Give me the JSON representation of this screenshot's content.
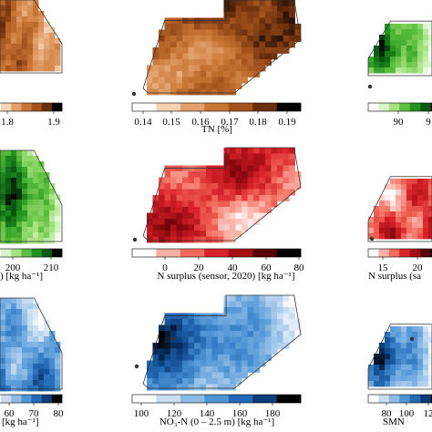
{
  "chart_data": [
    {
      "type": "heatmap",
      "panel": "row1-left",
      "label": "",
      "colorbar": {
        "ticks": [
          "1.8",
          "1.9"
        ],
        "cmap": "copper"
      }
    },
    {
      "type": "heatmap",
      "panel": "row1-center",
      "label": "TN [%]",
      "colorbar": {
        "ticks": [
          "0.14",
          "0.15",
          "0.16",
          "0.17",
          "0.18",
          "0.19"
        ],
        "cmap": "copper"
      }
    },
    {
      "type": "heatmap",
      "panel": "row1-right",
      "label": "",
      "colorbar": {
        "ticks": [
          "90",
          "9"
        ],
        "cmap": "greens"
      }
    },
    {
      "type": "heatmap",
      "panel": "row2-left",
      "label": ") [kg ha⁻¹]",
      "colorbar": {
        "ticks": [
          "200",
          "210"
        ],
        "cmap": "greens"
      }
    },
    {
      "type": "heatmap",
      "panel": "row2-center",
      "label": "N surplus (sensor, 2020) [kg ha⁻¹]",
      "colorbar": {
        "ticks": [
          "0",
          "20",
          "40",
          "60",
          "80"
        ],
        "cmap": "reds"
      }
    },
    {
      "type": "heatmap",
      "panel": "row2-right",
      "label": "N surplus (sa",
      "colorbar": {
        "ticks": [
          "15",
          "20"
        ],
        "cmap": "reds"
      }
    },
    {
      "type": "heatmap",
      "panel": "row3-left",
      "label": "[kg ha⁻¹]",
      "colorbar": {
        "ticks": [
          "60",
          "70",
          "80"
        ],
        "cmap": "blues"
      }
    },
    {
      "type": "heatmap",
      "panel": "row3-center",
      "label": "NO₃-N (0 – 2.5 m) [kg ha⁻¹]",
      "colorbar": {
        "ticks": [
          "100",
          "120",
          "140",
          "160",
          "180"
        ],
        "cmap": "blues"
      }
    },
    {
      "type": "heatmap",
      "panel": "row3-right",
      "label": "SMN",
      "colorbar": {
        "ticks": [
          "80",
          "100",
          "12"
        ],
        "cmap": "blues"
      }
    }
  ],
  "colors": {
    "copper": [
      "#ffffff",
      "#f4d2b2",
      "#e3a06a",
      "#c87535",
      "#a5541d",
      "#6b2f0c",
      "#000000"
    ],
    "greens": [
      "#ffffff",
      "#d8f5c8",
      "#a6e27f",
      "#5cbf3d",
      "#21921f",
      "#0a5a10",
      "#000000"
    ],
    "reds": [
      "#ffffff",
      "#fbb0a5",
      "#f26a5b",
      "#d8232a",
      "#a50f15",
      "#5a0006",
      "#000000"
    ],
    "blues": [
      "#ffffff",
      "#c8dcf2",
      "#8bbbe6",
      "#4f95d6",
      "#2369b4",
      "#0a3d7a",
      "#000000"
    ]
  }
}
